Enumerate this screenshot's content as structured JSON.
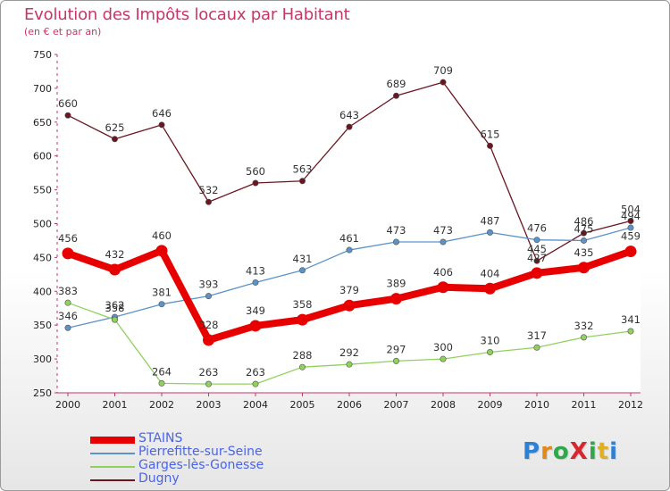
{
  "title": "Evolution des Impôts locaux par Habitant",
  "subtitle": "(en € et par an)",
  "logo_text": "ProXiti",
  "chart_data": {
    "type": "line",
    "categories": [
      "2000",
      "2001",
      "2002",
      "2003",
      "2004",
      "2005",
      "2006",
      "2007",
      "2008",
      "2009",
      "2010",
      "2011",
      "2012"
    ],
    "ylim": [
      250,
      750
    ],
    "yticks": [
      250,
      300,
      350,
      400,
      450,
      500,
      550,
      600,
      650,
      700,
      750
    ],
    "grid": false,
    "legend_position": "bottom-left",
    "series": [
      {
        "name": "STAINS",
        "color": "#e80000",
        "values": [
          456,
          432,
          460,
          328,
          349,
          358,
          379,
          389,
          406,
          404,
          427,
          435,
          459
        ]
      },
      {
        "name": "Pierrefitte-sur-Seine",
        "color": "#5b93c9",
        "values": [
          346,
          362,
          381,
          393,
          413,
          431,
          461,
          473,
          473,
          487,
          476,
          475,
          494
        ]
      },
      {
        "name": "Garges-lès-Gonesse",
        "color": "#8fd15c",
        "values": [
          383,
          358,
          264,
          263,
          263,
          288,
          292,
          297,
          300,
          310,
          317,
          332,
          341
        ]
      },
      {
        "name": "Dugny",
        "color": "#6b1520",
        "values": [
          660,
          625,
          646,
          532,
          560,
          563,
          643,
          689,
          709,
          615,
          445,
          486,
          504
        ]
      }
    ]
  }
}
